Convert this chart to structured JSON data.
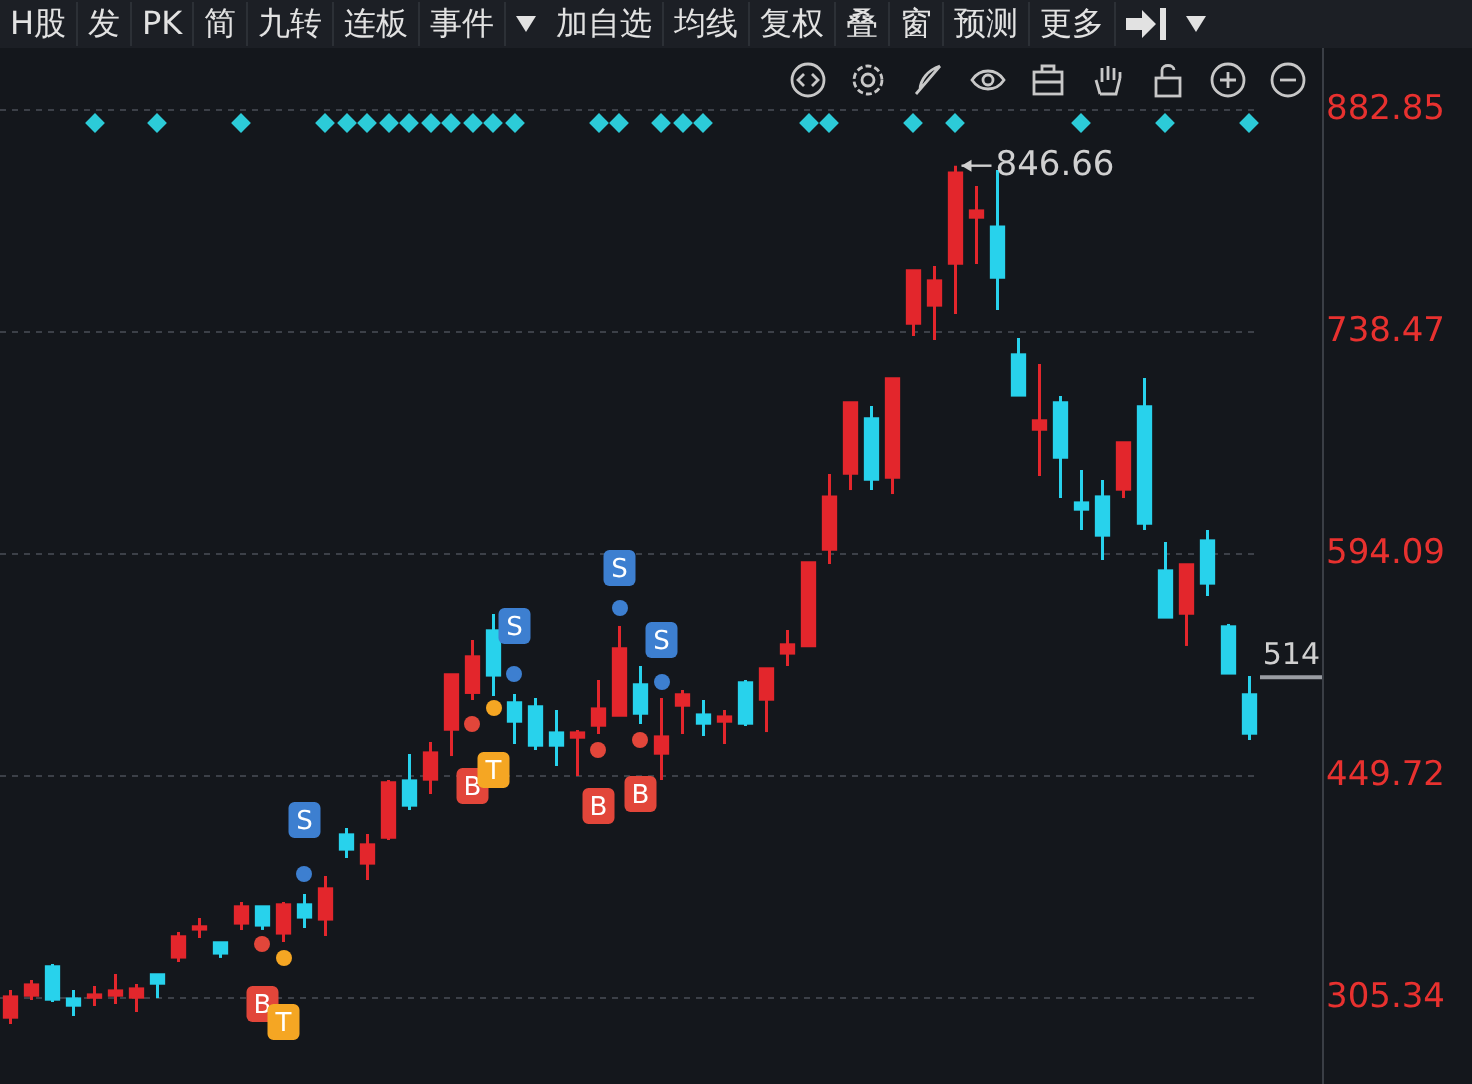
{
  "chart_data": {
    "type": "candlestick",
    "annotations": [
      "H股",
      "发",
      "PK",
      "简",
      "九转",
      "连板",
      "事件",
      "加自选",
      "均线",
      "复权",
      "叠",
      "窗",
      "预测",
      "更多",
      "846.66",
      {
        "text": "S",
        "y": 421.1
      },
      {
        "text": "S",
        "y": 547.3
      },
      {
        "text": "S",
        "y": 585.0
      },
      {
        "text": "S",
        "y": 538.2
      },
      {
        "text": "B",
        "y": 301.4
      },
      {
        "text": "T",
        "y": 289.7
      },
      {
        "text": "B",
        "y": 443.2
      },
      {
        "text": "T",
        "y": 453.6
      },
      {
        "text": "B",
        "y": 430.2
      },
      {
        "text": "B",
        "y": 438.0
      }
    ],
    "categories": [
      null,
      null,
      null,
      null,
      null,
      null,
      null,
      null,
      null,
      null,
      null,
      null,
      null,
      null,
      null,
      null,
      null,
      null,
      null,
      null,
      null,
      null,
      null,
      null,
      null,
      null,
      null,
      null,
      null,
      null,
      null,
      null,
      null,
      null,
      null,
      null,
      null,
      null,
      null,
      null,
      null,
      null,
      null,
      null,
      null,
      null,
      null,
      null,
      null,
      null,
      null,
      null,
      null,
      null,
      null,
      null,
      null,
      null,
      null,
      null
    ],
    "ohlc": [
      [
        292.3,
        310.5,
        288.4,
        306.6
      ],
      [
        306.6,
        317.1,
        304.0,
        314.4
      ],
      [
        326.2,
        327.5,
        302.7,
        304.0
      ],
      [
        305.3,
        310.5,
        293.6,
        300.1
      ],
      [
        305.3,
        313.1,
        300.1,
        307.9
      ],
      [
        306.6,
        321.0,
        301.4,
        310.5
      ],
      [
        305.3,
        314.4,
        296.2,
        311.8
      ],
      [
        321.0,
        321.0,
        305.3,
        314.4
      ],
      [
        331.4,
        348.3,
        328.8,
        345.7
      ],
      [
        349.6,
        357.4,
        344.4,
        352.2
      ],
      [
        341.8,
        341.8,
        331.4,
        334.0
      ],
      [
        353.5,
        367.7,
        349.6,
        365.2
      ],
      [
        365.2,
        365.2,
        349.6,
        352.2
      ],
      [
        347.0,
        367.7,
        341.8,
        366.5
      ],
      [
        366.5,
        373.0,
        350.9,
        357.4
      ],
      [
        356.1,
        384.7,
        345.7,
        376.9
      ],
      [
        412.0,
        415.9,
        396.4,
        401.6
      ],
      [
        392.5,
        412.0,
        382.1,
        405.5
      ],
      [
        409.4,
        447.1,
        408.1,
        445.8
      ],
      [
        447.1,
        464.0,
        427.6,
        430.2
      ],
      [
        447.1,
        471.8,
        438.0,
        465.3
      ],
      [
        479.6,
        516.1,
        462.7,
        516.1
      ],
      [
        503.5,
        538.2,
        499.1,
        527.8
      ],
      [
        544.7,
        555.1,
        501.8,
        514.8
      ],
      [
        497.9,
        503.1,
        470.6,
        484.8
      ],
      [
        495.3,
        500.5,
        466.6,
        469.2
      ],
      [
        478.3,
        492.7,
        456.2,
        469.2
      ],
      [
        474.4,
        479.6,
        449.7,
        478.3
      ],
      [
        482.2,
        512.2,
        477.0,
        493.9
      ],
      [
        488.7,
        547.3,
        488.7,
        533.0
      ],
      [
        509.6,
        521.3,
        483.5,
        490.0
      ],
      [
        464.0,
        500.5,
        447.1,
        475.7
      ],
      [
        495.2,
        505.7,
        477.0,
        503.1
      ],
      [
        490.0,
        499.1,
        475.7,
        483.5
      ],
      [
        484.8,
        492.7,
        470.6,
        488.7
      ],
      [
        510.9,
        512.2,
        482.2,
        483.5
      ],
      [
        499.1,
        520.0,
        478.3,
        520.0
      ],
      [
        529.1,
        544.7,
        521.3,
        535.6
      ],
      [
        533.9,
        588.9,
        533.9,
        588.9
      ],
      [
        596.7,
        646.1,
        587.6,
        631.8
      ],
      [
        646.1,
        693.0,
        635.7,
        693.0
      ],
      [
        682.6,
        690.4,
        635.7,
        642.2
      ],
      [
        643.5,
        708.6,
        633.1,
        708.6
      ],
      [
        743.7,
        778.8,
        735.9,
        778.8
      ],
      [
        755.4,
        781.4,
        733.3,
        772.3
      ],
      [
        782.7,
        846.66,
        750.2,
        842.5
      ],
      [
        812.6,
        833.4,
        782.7,
        817.8
      ],
      [
        807.4,
        843.8,
        752.8,
        773.6
      ],
      [
        724.2,
        734.6,
        696.9,
        696.9
      ],
      [
        674.7,
        717.7,
        644.8,
        681.3
      ],
      [
        693.0,
        696.9,
        630.5,
        656.5
      ],
      [
        627.9,
        648.7,
        609.7,
        622.7
      ],
      [
        631.8,
        642.2,
        590.2,
        605.8
      ],
      [
        635.7,
        667.0,
        630.5,
        667.0
      ],
      [
        690.4,
        708.6,
        609.7,
        613.6
      ],
      [
        583.7,
        601.9,
        552.5,
        552.5
      ],
      [
        555.1,
        587.6,
        534.3,
        587.6
      ],
      [
        603.2,
        609.7,
        566.8,
        574.6
      ],
      [
        547.3,
        548.6,
        516.1,
        516.1
      ],
      [
        503.1,
        514.8,
        473.1,
        477.0
      ]
    ],
    "colors": [
      "#e3262c",
      "#e3262c",
      "#28d2ec",
      "#28d2ec",
      "#e3262c",
      "#e3262c",
      "#e3262c",
      "#28d2ec",
      "#e3262c",
      "#e3262c",
      "#28d2ec",
      "#e3262c",
      "#28d2ec",
      "#e3262c",
      "#28d2ec",
      "#e3262c",
      "#28d2ec",
      "#e3262c",
      "#e3262c",
      "#28d2ec",
      "#e3262c",
      "#e3262c",
      "#e3262c",
      "#28d2ec",
      "#28d2ec",
      "#28d2ec",
      "#28d2ec",
      "#e3262c",
      "#e3262c",
      "#e3262c",
      "#28d2ec",
      "#e3262c",
      "#e3262c",
      "#28d2ec",
      "#e3262c",
      "#28d2ec",
      "#e3262c",
      "#e3262c",
      "#e3262c",
      "#e3262c",
      "#e3262c",
      "#28d2ec",
      "#e3262c",
      "#e3262c",
      "#e3262c",
      "#e3262c",
      "#e3262c",
      "#28d2ec",
      "#28d2ec",
      "#e3262c",
      "#28d2ec",
      "#28d2ec",
      "#28d2ec",
      "#e3262c",
      "#28d2ec",
      "#28d2ec",
      "#e3262c",
      "#28d2ec",
      "#28d2ec",
      "#28d2ec"
    ],
    "ylim": [
      249.4,
      923.2
    ],
    "yticks": [
      305.34,
      449.72,
      594.09,
      738.47,
      882.85
    ],
    "ref_lines": [
      {
        "axis": "y",
        "value": 514,
        "label": "514",
        "color": "#9a9da3"
      }
    ],
    "grid": "y",
    "tick_labels": "y"
  }
}
